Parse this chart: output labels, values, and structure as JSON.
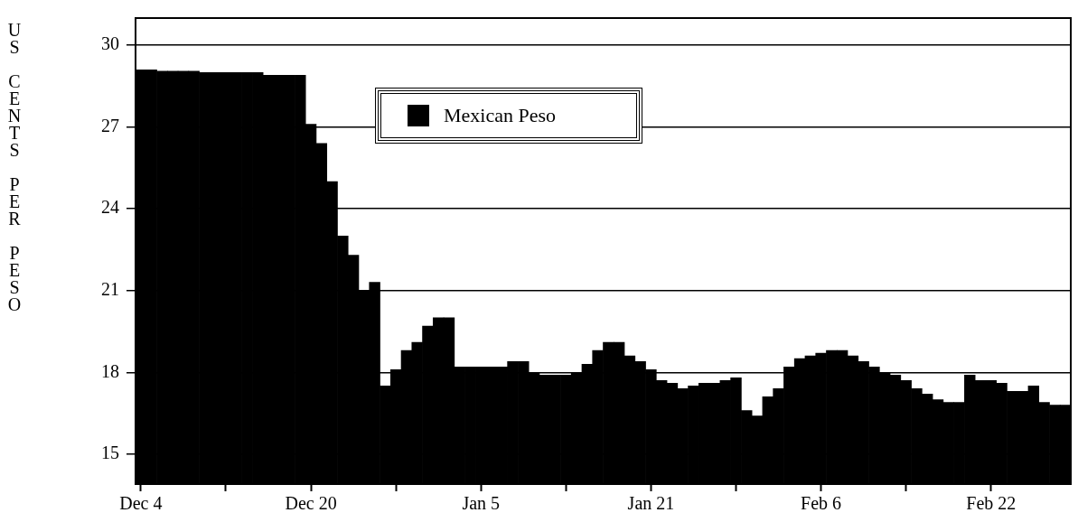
{
  "chart_data": {
    "type": "bar",
    "ylabel": "US CENTS PER PESO",
    "categories": [
      "Dec 4",
      null,
      null,
      null,
      null,
      null,
      null,
      null,
      null,
      null,
      null,
      null,
      null,
      null,
      null,
      null,
      "Dec 20",
      null,
      null,
      null,
      null,
      null,
      null,
      null,
      null,
      null,
      null,
      null,
      null,
      null,
      null,
      null,
      "Jan 5",
      null,
      null,
      null,
      null,
      null,
      null,
      null,
      null,
      null,
      null,
      null,
      null,
      null,
      null,
      null,
      "Jan 21",
      null,
      null,
      null,
      null,
      null,
      null,
      null,
      null,
      null,
      null,
      null,
      null,
      null,
      null,
      null,
      "Feb 6",
      null,
      null,
      null,
      null,
      null,
      null,
      null,
      null,
      null,
      null,
      null,
      null,
      null,
      null,
      null,
      "Feb 22",
      null,
      null,
      null,
      null,
      null,
      null,
      null
    ],
    "series": [
      {
        "name": "Mexican Peso",
        "color": "#000000",
        "values": [
          29.1,
          29.1,
          29.05,
          29.05,
          29.05,
          29.05,
          29.0,
          29.0,
          29.0,
          29.0,
          29.0,
          29.0,
          28.9,
          28.9,
          28.9,
          28.9,
          27.1,
          26.4,
          25.0,
          23.0,
          22.3,
          21.0,
          21.3,
          17.5,
          18.1,
          18.8,
          19.1,
          19.7,
          20.0,
          20.0,
          18.2,
          18.2,
          18.2,
          18.2,
          18.2,
          18.4,
          18.4,
          18.0,
          17.9,
          17.9,
          17.9,
          18.0,
          18.3,
          18.8,
          19.1,
          19.1,
          18.6,
          18.4,
          18.1,
          17.7,
          17.6,
          17.4,
          17.5,
          17.6,
          17.6,
          17.7,
          17.8,
          16.6,
          16.4,
          17.1,
          17.4,
          18.2,
          18.5,
          18.6,
          18.7,
          18.8,
          18.8,
          18.6,
          18.4,
          18.2,
          18.0,
          17.9,
          17.7,
          17.4,
          17.2,
          17.0,
          16.9,
          16.9,
          17.9,
          17.7,
          17.7,
          17.6,
          17.3,
          17.3,
          17.5,
          16.9,
          16.8,
          16.8
        ]
      }
    ],
    "ylim": [
      13.9,
      31
    ],
    "yticks": [
      15,
      18,
      21,
      24,
      27,
      30
    ],
    "grid": "y",
    "legend": "top"
  }
}
